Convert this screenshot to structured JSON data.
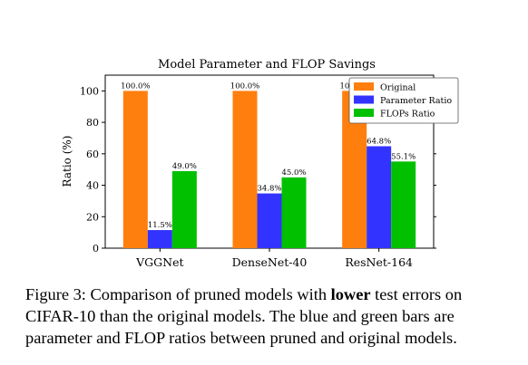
{
  "chart_data": {
    "type": "bar",
    "title": "Model Parameter and FLOP Savings",
    "xlabel": "",
    "ylabel": "Ratio (%)",
    "categories": [
      "VGGNet",
      "DenseNet-40",
      "ResNet-164"
    ],
    "series": [
      {
        "name": "Original",
        "values": [
          100.0,
          100.0,
          100.0
        ],
        "labels": [
          "100.0%",
          "100.0%",
          "100.0%"
        ],
        "color": "#ff7f0e"
      },
      {
        "name": "Parameter Ratio",
        "values": [
          11.5,
          34.8,
          64.8
        ],
        "labels": [
          "11.5%",
          "34.8%",
          "64.8%"
        ],
        "color": "#3333ff"
      },
      {
        "name": "FLOPs Ratio",
        "values": [
          49.0,
          45.0,
          55.1
        ],
        "labels": [
          "49.0%",
          "45.0%",
          "55.1%"
        ],
        "color": "#00c000"
      }
    ],
    "ylim": [
      0,
      110
    ],
    "yticks": [
      "0",
      "20",
      "40",
      "60",
      "80",
      "100"
    ],
    "legend": "top-right",
    "grid": false
  },
  "caption": {
    "line1_prefix": "Figure 3: Comparison of pruned models with ",
    "line1_bold": "lower",
    "line1_suffix": " test errors on",
    "line2": "CIFAR-10 than the original models.  The blue and green bars are",
    "line3": "parameter and FLOP ratios between pruned and original models."
  }
}
